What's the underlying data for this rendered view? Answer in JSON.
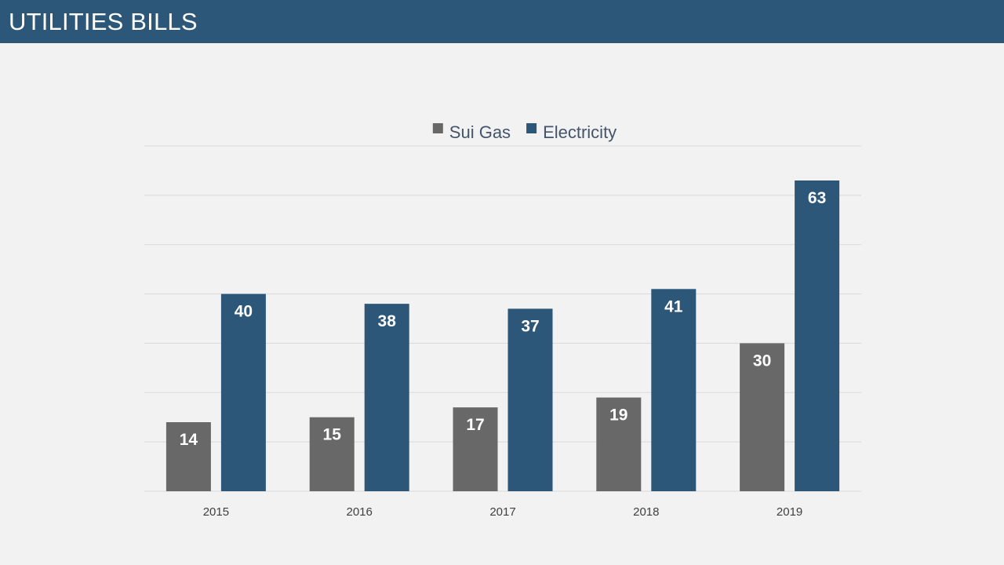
{
  "slide": {
    "title": "UTILITIES BILLS"
  },
  "chart_data": {
    "type": "bar",
    "title": "",
    "xlabel": "",
    "ylabel": "",
    "categories": [
      "2015",
      "2016",
      "2017",
      "2018",
      "2019"
    ],
    "series": [
      {
        "name": "Sui Gas",
        "values": [
          14,
          15,
          17,
          19,
          30
        ],
        "color": "#686868"
      },
      {
        "name": "Electricity",
        "values": [
          40,
          38,
          37,
          41,
          63
        ],
        "color": "#2c5779"
      }
    ],
    "ylim": [
      0,
      70
    ],
    "grid": true,
    "legend_position": "top",
    "show_value_axis": false,
    "data_label_color": "#ffffff",
    "gridline_color": "#d9d9d9",
    "tick_label_color": "#404040",
    "legend_text_color": "#44546a"
  }
}
